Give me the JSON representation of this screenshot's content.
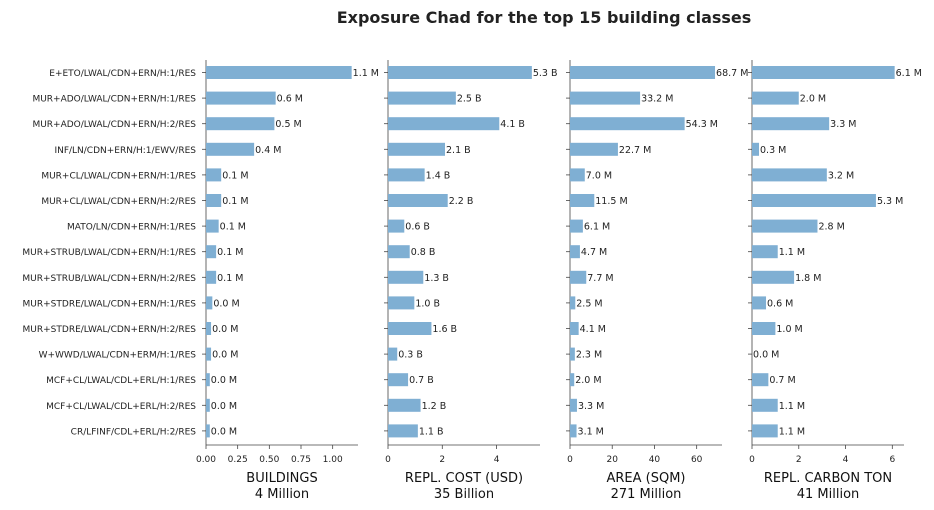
{
  "chart_data": {
    "type": "bar",
    "orientation": "horizontal",
    "title": "Exposure Chad for the top 15 building classes",
    "categories": [
      "E+ETO/LWAL/CDN+ERN/H:1/RES",
      "MUR+ADO/LWAL/CDN+ERN/H:1/RES",
      "MUR+ADO/LWAL/CDN+ERN/H:2/RES",
      "INF/LN/CDN+ERN/H:1/EWV/RES",
      "MUR+CL/LWAL/CDN+ERN/H:1/RES",
      "MUR+CL/LWAL/CDN+ERN/H:2/RES",
      "MATO/LN/CDN+ERN/H:1/RES",
      "MUR+STRUB/LWAL/CDN+ERN/H:1/RES",
      "MUR+STRUB/LWAL/CDN+ERN/H:2/RES",
      "MUR+STDRE/LWAL/CDN+ERN/H:1/RES",
      "MUR+STDRE/LWAL/CDN+ERN/H:2/RES",
      "W+WWD/LWAL/CDN+ERM/H:1/RES",
      "MCF+CL/LWAL/CDL+ERL/H:1/RES",
      "MCF+CL/LWAL/CDL+ERL/H:2/RES",
      "CR/LFINF/CDL+ERL/H:2/RES"
    ],
    "bar_color": "#7fafd3",
    "panels": [
      {
        "xlabel": "BUILDINGS",
        "total": "4 Million",
        "xlim": [
          0,
          1.2
        ],
        "ticks": [
          0,
          0.25,
          0.5,
          0.75,
          1.0
        ],
        "tick_labels": [
          "0.00",
          "0.25",
          "0.50",
          "0.75",
          "1.00"
        ],
        "values": [
          1.15,
          0.55,
          0.54,
          0.38,
          0.12,
          0.12,
          0.1,
          0.08,
          0.08,
          0.05,
          0.04,
          0.04,
          0.03,
          0.03,
          0.03
        ],
        "labels": [
          "1.1 M",
          "0.6 M",
          "0.5 M",
          "0.4 M",
          "0.1 M",
          "0.1 M",
          "0.1 M",
          "0.1 M",
          "0.1 M",
          "0.0 M",
          "0.0 M",
          "0.0 M",
          "0.0 M",
          "0.0 M",
          "0.0 M"
        ]
      },
      {
        "xlabel": "REPL. COST (USD)",
        "total": "35 Billion",
        "xlim": [
          0,
          5.6
        ],
        "ticks": [
          0,
          2,
          4
        ],
        "tick_labels": [
          "0",
          "2",
          "4"
        ],
        "values": [
          5.3,
          2.5,
          4.1,
          2.1,
          1.35,
          2.2,
          0.6,
          0.8,
          1.3,
          0.97,
          1.6,
          0.34,
          0.74,
          1.2,
          1.1
        ],
        "labels": [
          "5.3 B",
          "2.5 B",
          "4.1 B",
          "2.1 B",
          "1.4 B",
          "2.2 B",
          "0.6 B",
          "0.8 B",
          "1.3 B",
          "1.0 B",
          "1.6 B",
          "0.3 B",
          "0.7 B",
          "1.2 B",
          "1.1 B"
        ]
      },
      {
        "xlabel": "AREA (SQM)",
        "total": "271 Million",
        "xlim": [
          0,
          72
        ],
        "ticks": [
          0,
          20,
          40,
          60
        ],
        "tick_labels": [
          "0",
          "20",
          "40",
          "60"
        ],
        "values": [
          68.7,
          33.2,
          54.3,
          22.7,
          7.0,
          11.5,
          6.1,
          4.7,
          7.7,
          2.5,
          4.1,
          2.3,
          2.0,
          3.3,
          3.1
        ],
        "labels": [
          "68.7 M",
          "33.2 M",
          "54.3 M",
          "22.7 M",
          "7.0 M",
          "11.5 M",
          "6.1 M",
          "4.7 M",
          "7.7 M",
          "2.5 M",
          "4.1 M",
          "2.3 M",
          "2.0 M",
          "3.3 M",
          "3.1 M"
        ]
      },
      {
        "xlabel": "REPL. CARBON TON",
        "total": "41 Million",
        "xlim": [
          0,
          6.5
        ],
        "ticks": [
          0,
          2,
          4,
          6
        ],
        "tick_labels": [
          "0",
          "2",
          "4",
          "6"
        ],
        "values": [
          6.1,
          2.0,
          3.3,
          0.3,
          3.2,
          5.3,
          2.8,
          1.1,
          1.8,
          0.6,
          1.0,
          0.0,
          0.7,
          1.1,
          1.1
        ],
        "labels": [
          "6.1 M",
          "2.0 M",
          "3.3 M",
          "0.3 M",
          "3.2 M",
          "5.3 M",
          "2.8 M",
          "1.1 M",
          "1.8 M",
          "0.6 M",
          "1.0 M",
          "0.0 M",
          "0.7 M",
          "1.1 M",
          "1.1 M"
        ]
      }
    ]
  }
}
